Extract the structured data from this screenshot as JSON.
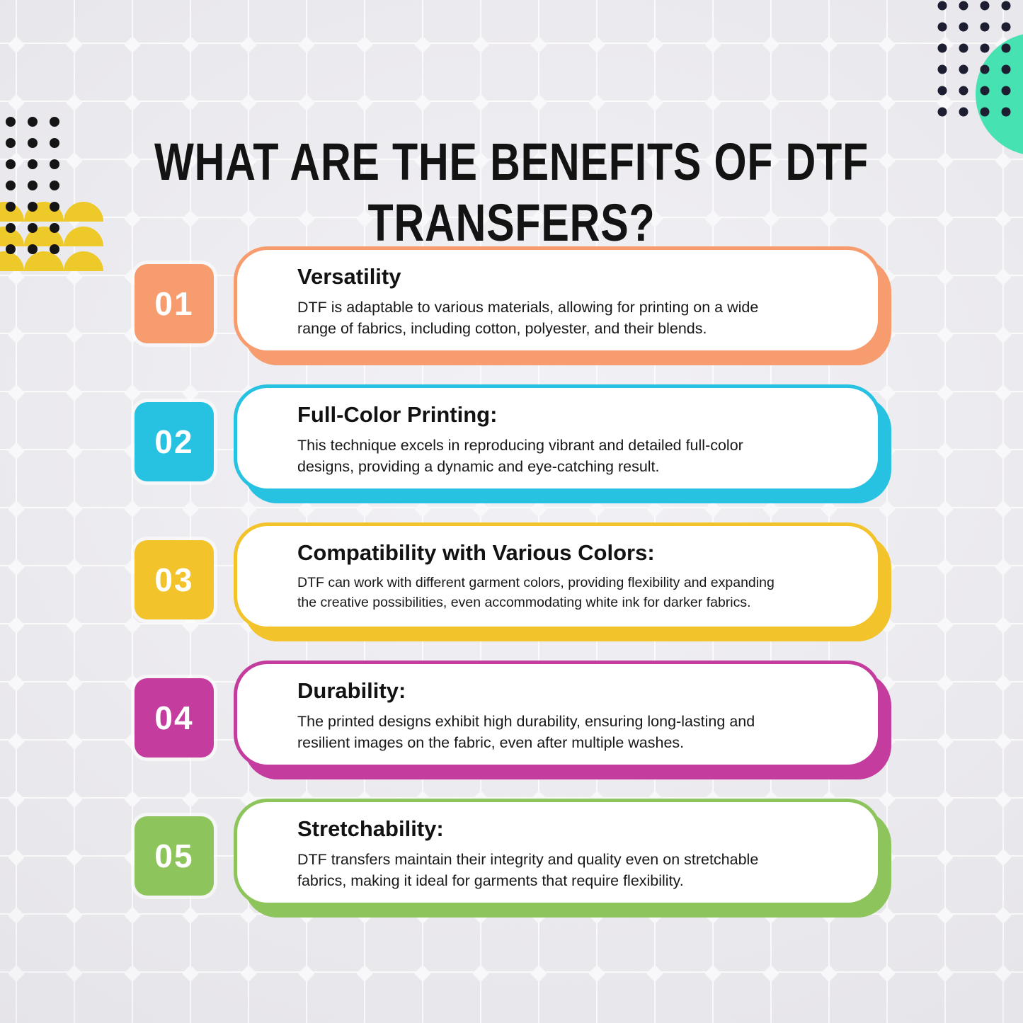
{
  "title": "WHAT ARE THE BENEFITS OF DTF\nTRANSFERS?",
  "cards": [
    {
      "number": "01",
      "title": "Versatility",
      "body": "DTF is adaptable to various materials, allowing for printing on a wide\nrange of fabrics, including cotton, polyester, and their blends.",
      "accent": "#F79C6F"
    },
    {
      "number": "02",
      "title": "Full-Color Printing:",
      "body": "This technique excels in reproducing vibrant and detailed full-color\ndesigns, providing a dynamic and eye-catching result.",
      "accent": "#27C2E2"
    },
    {
      "number": "03",
      "title": "Compatibility with Various Colors:",
      "body": "DTF can work with different garment colors, providing flexibility and expanding\nthe creative possibilities, even accommodating white ink for darker fabrics.",
      "accent": "#F2C32A"
    },
    {
      "number": "04",
      "title": "Durability:",
      "body": "The printed designs exhibit high durability, ensuring long-lasting and\nresilient images on the fabric, even after multiple washes.",
      "accent": "#C33C9E"
    },
    {
      "number": "05",
      "title": "Stretchability:",
      "body": "DTF transfers maintain their integrity and quality even on stretchable\nfabrics, making it ideal for garments that require flexibility.",
      "accent": "#8DC45B"
    }
  ],
  "colors": {
    "background": "#e9e8ec",
    "grid_line": "#ffffff",
    "dot_dark": "#151515",
    "dot_navy": "#1e1e32",
    "teal_circle": "#47E2B2",
    "yellow_semicircle": "#EDC92A",
    "text_black": "#131313",
    "card_background": "#ffffff"
  }
}
